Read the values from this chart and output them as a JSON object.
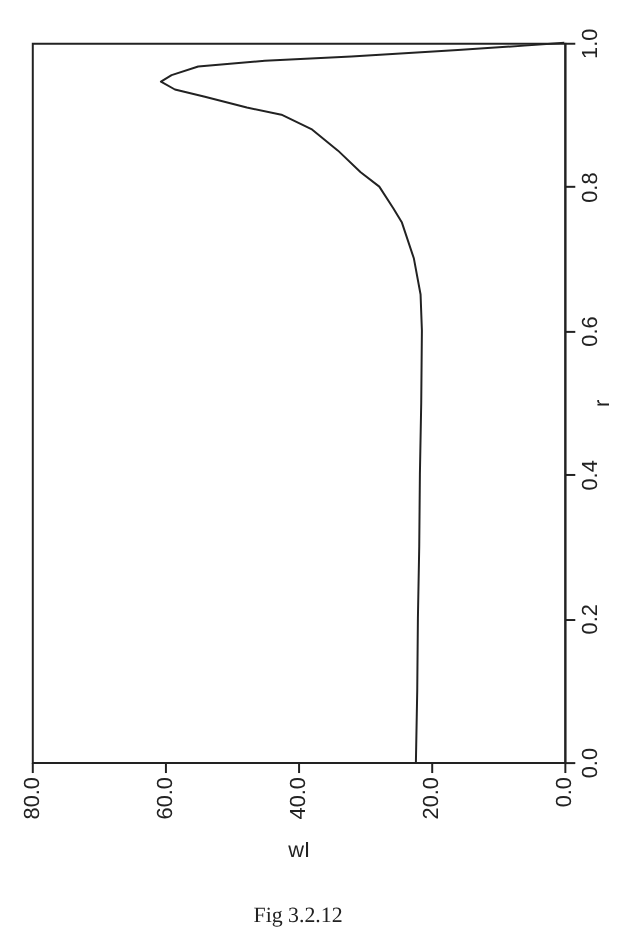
{
  "chart_data": {
    "type": "line",
    "xlabel": "wI",
    "ylabel": "r",
    "x": [
      22.3,
      22.1,
      22.0,
      21.8,
      21.7,
      21.5,
      21.4,
      21.6,
      22.6,
      24.4,
      25.7,
      27.8,
      30.6,
      34.0,
      38.0,
      42.5,
      47.7,
      54.0,
      58.5,
      60.6,
      59.0,
      55.0,
      45.0,
      32.0,
      16.0,
      6.0,
      0.0
    ],
    "series": [
      {
        "color": "#222222",
        "values": [
          0.0,
          0.1,
          0.2,
          0.3,
          0.4,
          0.5,
          0.6,
          0.65,
          0.7,
          0.75,
          0.77,
          0.8,
          0.82,
          0.85,
          0.88,
          0.9,
          0.91,
          0.925,
          0.935,
          0.946,
          0.955,
          0.967,
          0.975,
          0.981,
          0.99,
          0.996,
          1.0
        ]
      }
    ],
    "xlim": [
      80.0,
      0.0
    ],
    "xticks": [
      {
        "value": 0,
        "label": "0.0"
      },
      {
        "value": 20,
        "label": "20.0"
      },
      {
        "value": 40,
        "label": "40.0"
      },
      {
        "value": 60,
        "label": "60.0"
      },
      {
        "value": 80,
        "label": "80.0"
      }
    ],
    "ylim": [
      0.0,
      1.0
    ],
    "yticks": [
      {
        "value": 0,
        "label": "0.0"
      },
      {
        "value": 0.2,
        "label": "0.2"
      },
      {
        "value": 0.4,
        "label": "0.4"
      },
      {
        "value": 0.6,
        "label": "0.6"
      },
      {
        "value": 0.8,
        "label": "0.8"
      },
      {
        "value": 1,
        "label": "1.0"
      }
    ],
    "grid": false,
    "annotations": [
      "Fig 3.2.12"
    ]
  }
}
